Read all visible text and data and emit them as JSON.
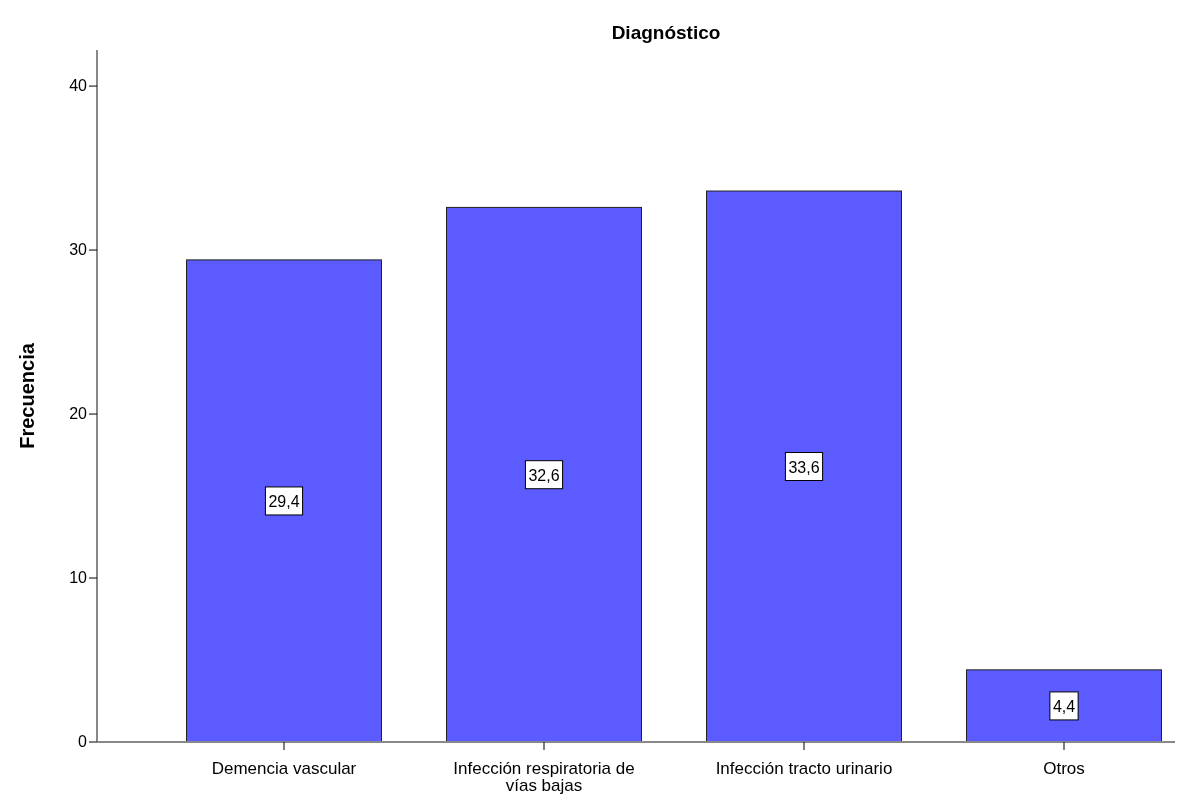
{
  "chart_data": {
    "type": "bar",
    "title": "Diagnóstico",
    "ylabel": "Frecuencia",
    "categories": [
      "Demencia vascular",
      "Infección respiratoria de vías bajas",
      "Infección tracto urinario",
      "Otros"
    ],
    "values": [
      29.4,
      32.6,
      33.6,
      4.4
    ],
    "color": "#5b5bff",
    "value_labels": [
      "29,4",
      "32,6",
      "33,6",
      "4,4"
    ],
    "ylim": [
      0,
      42.2
    ],
    "yticks": [
      0,
      10,
      20,
      30,
      40
    ],
    "grid": false
  }
}
